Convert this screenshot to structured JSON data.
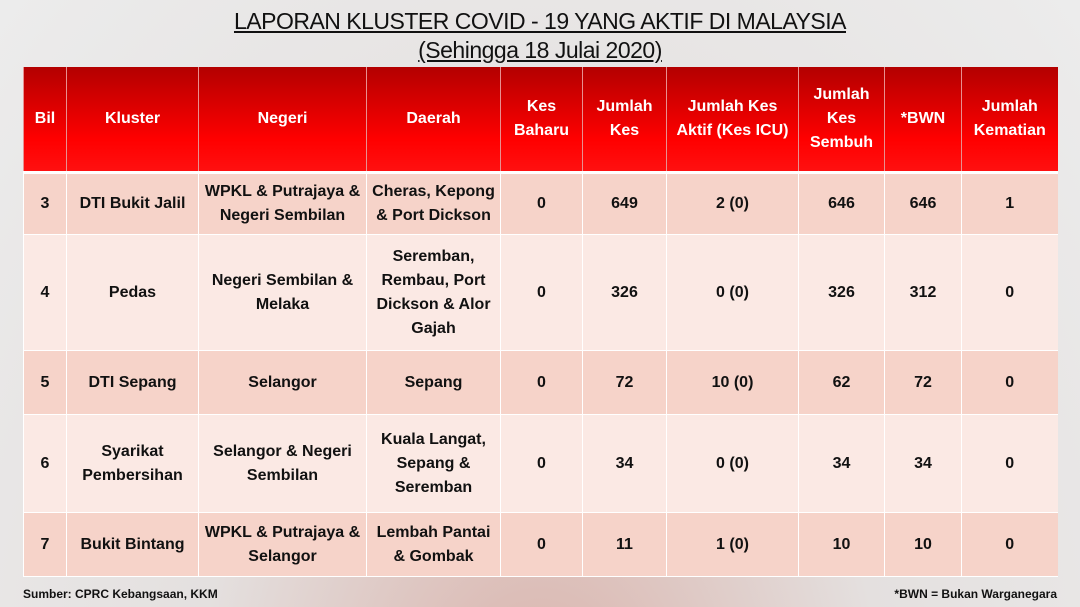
{
  "title": "LAPORAN KLUSTER COVID - 19 YANG AKTIF DI MALAYSIA",
  "subtitle": "(Sehingga 18 Julai 2020)",
  "columns": [
    "Bil",
    "Kluster",
    "Negeri",
    "Daerah",
    "Kes Baharu",
    "Jumlah Kes",
    "Jumlah Kes Aktif (Kes ICU)",
    "Jumlah Kes Sembuh",
    "*BWN",
    "Jumlah Kematian"
  ],
  "rows": [
    [
      "3",
      "DTI Bukit Jalil",
      "WPKL & Putrajaya & Negeri Sembilan",
      "Cheras, Kepong & Port Dickson",
      "0",
      "649",
      "2 (0)",
      "646",
      "646",
      "1"
    ],
    [
      "4",
      "Pedas",
      "Negeri Sembilan & Melaka",
      "Seremban, Rembau, Port Dickson & Alor Gajah",
      "0",
      "326",
      "0 (0)",
      "326",
      "312",
      "0"
    ],
    [
      "5",
      "DTI Sepang",
      "Selangor",
      "Sepang",
      "0",
      "72",
      "10 (0)",
      "62",
      "72",
      "0"
    ],
    [
      "6",
      "Syarikat Pembersihan",
      "Selangor & Negeri Sembilan",
      "Kuala Langat, Sepang & Seremban",
      "0",
      "34",
      "0 (0)",
      "34",
      "34",
      "0"
    ],
    [
      "7",
      "Bukit Bintang",
      "WPKL & Putrajaya & Selangor",
      "Lembah Pantai & Gombak",
      "0",
      "11",
      "1 (0)",
      "10",
      "10",
      "0"
    ]
  ],
  "footer": {
    "source": "Sumber: CPRC Kebangsaan, KKM",
    "note": "*BWN = Bukan Warganegara"
  },
  "colors": {
    "header": "#ff0000",
    "row_odd": "#f6d3c9",
    "row_even": "#fbe9e4"
  }
}
